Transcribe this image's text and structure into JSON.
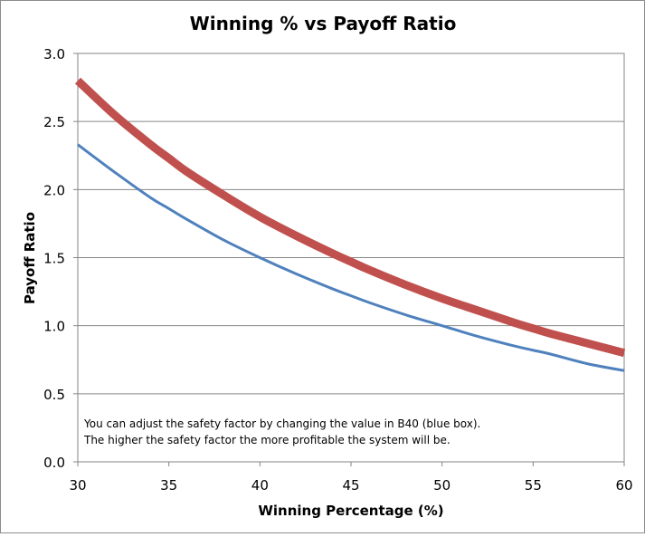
{
  "chart_data": {
    "type": "line",
    "title": "Winning % vs Payoff Ratio",
    "xlabel": "Winning Percentage (%)",
    "ylabel": "Payoff Ratio",
    "xlim": [
      30,
      60
    ],
    "ylim": [
      0,
      3.0
    ],
    "grid": "horizontal",
    "legend": "none",
    "x_ticks": [
      "30",
      "35",
      "40",
      "45",
      "50",
      "55",
      "60"
    ],
    "y_ticks": [
      "0.0",
      "0.5",
      "1.0",
      "1.5",
      "2.0",
      "2.5",
      "3.0"
    ],
    "annotation": [
      "You can adjust the safety factor by changing the value in B40 (blue box).",
      "The higher the safety factor the more profitable the system will be."
    ],
    "series": [
      {
        "color": "#c0504d",
        "line_weight": "thick",
        "x": [
          30,
          32,
          34,
          35,
          36,
          38,
          40,
          42,
          44,
          45,
          46,
          48,
          50,
          52,
          54,
          55,
          56,
          58,
          60
        ],
        "y": [
          2.8,
          2.55,
          2.33,
          2.23,
          2.13,
          1.96,
          1.8,
          1.66,
          1.53,
          1.47,
          1.41,
          1.3,
          1.2,
          1.11,
          1.02,
          0.98,
          0.94,
          0.87,
          0.8
        ]
      },
      {
        "color": "#4f81bd",
        "line_weight": "thin",
        "x": [
          30,
          32,
          34,
          35,
          36,
          38,
          40,
          42,
          44,
          45,
          46,
          48,
          50,
          52,
          54,
          55,
          56,
          58,
          60
        ],
        "y": [
          2.33,
          2.13,
          1.94,
          1.86,
          1.78,
          1.63,
          1.5,
          1.38,
          1.27,
          1.22,
          1.17,
          1.08,
          1.0,
          0.92,
          0.85,
          0.82,
          0.79,
          0.72,
          0.67
        ]
      }
    ]
  }
}
